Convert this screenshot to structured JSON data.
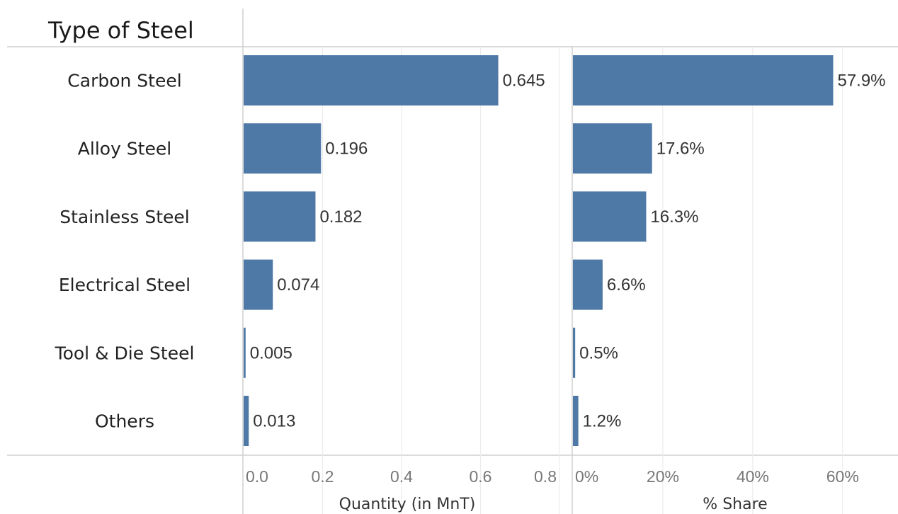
{
  "chart_data": {
    "type": "bar",
    "orientation": "horizontal",
    "row_header": "Type of Steel",
    "categories": [
      "Carbon Steel",
      "Alloy Steel",
      "Stainless Steel",
      "Electrical Steel",
      "Tool & Die Steel",
      "Others"
    ],
    "panels": [
      {
        "xlabel": "Quantity  (in MnT)",
        "xlim": [
          0,
          0.8
        ],
        "ticks": [
          "0.0",
          "0.2",
          "0.4",
          "0.6",
          "0.8"
        ],
        "tick_values": [
          0,
          0.2,
          0.4,
          0.6,
          0.8
        ],
        "values": [
          0.645,
          0.196,
          0.182,
          0.074,
          0.005,
          0.013
        ],
        "value_labels": [
          "0.645",
          "0.196",
          "0.182",
          "0.074",
          "0.005",
          "0.013"
        ]
      },
      {
        "xlabel": "% Share",
        "xlim": [
          0,
          75
        ],
        "ticks": [
          "0%",
          "20%",
          "40%",
          "60%"
        ],
        "tick_values": [
          0,
          20,
          40,
          60
        ],
        "values": [
          57.9,
          17.6,
          16.3,
          6.6,
          0.5,
          1.2
        ],
        "value_labels": [
          "57.9%",
          "17.6%",
          "16.3%",
          "6.6%",
          "0.5%",
          "1.2%"
        ]
      }
    ],
    "bar_color": "#4e79a7",
    "grid": true,
    "legend": "none"
  }
}
